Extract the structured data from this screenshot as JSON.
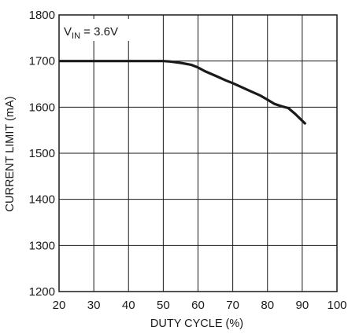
{
  "chart_data": {
    "type": "line",
    "title": "",
    "xlabel": "DUTY CYCLE (%)",
    "ylabel": "CURRENT LIMIT (mA)",
    "xlim": [
      20,
      100
    ],
    "ylim": [
      1200,
      1800
    ],
    "x_ticks": [
      20,
      30,
      40,
      50,
      60,
      70,
      80,
      90,
      100
    ],
    "y_ticks": [
      1200,
      1300,
      1400,
      1500,
      1600,
      1700,
      1800
    ],
    "grid": true,
    "annotation": {
      "main": "V",
      "sub": "IN",
      "rest": " = 3.6V"
    },
    "series": [
      {
        "x": [
          20,
          30,
          40,
          50,
          52,
          55,
          58,
          60,
          62,
          65,
          68,
          70,
          75,
          78,
          80,
          82,
          84,
          86,
          88,
          91
        ],
        "y": [
          1700,
          1700,
          1700,
          1700,
          1699,
          1696,
          1692,
          1686,
          1678,
          1668,
          1658,
          1652,
          1635,
          1625,
          1616,
          1607,
          1602,
          1598,
          1585,
          1563
        ]
      }
    ],
    "colors": {
      "line": "#1a1a1a",
      "grid": "#1a1a1a"
    }
  }
}
